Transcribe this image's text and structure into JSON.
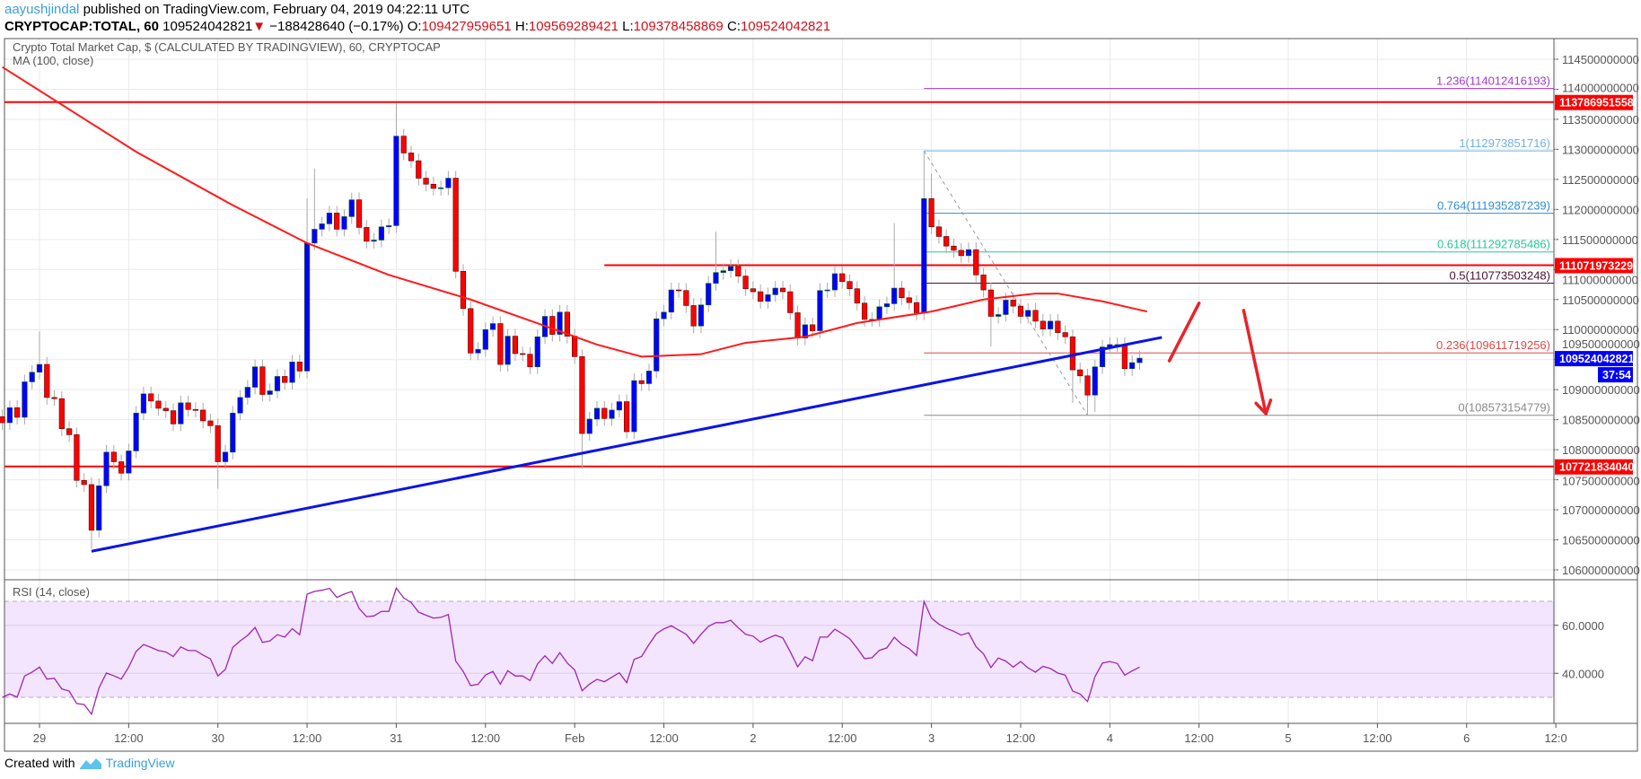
{
  "header": {
    "author": "aayushjindal",
    "published": "published on TradingView.com, February 04, 2019 04:22:11 UTC",
    "symbol": "CRYPTOCAP:TOTAL, 60",
    "last": "109524042821",
    "change": "−188428640 (−0.17%)",
    "direction": "down",
    "o_label": "O:",
    "o": "109427959651",
    "h_label": "H:",
    "h": "109569289421",
    "l_label": "L:",
    "l": "109378458869",
    "c_label": "C:",
    "c": "109524042821"
  },
  "chart": {
    "title": "Crypto Total Market Cap, $ (CALCULATED BY TRADINGVIEW), 60, CRYPTOCAP",
    "ma_label": "MA (100, close)",
    "rsi_label": "RSI (14, close)",
    "colors": {
      "up": "#0000ff",
      "down": "#ff0000",
      "ma": "#ff1a1a",
      "trend": "#0a14e6",
      "level": "#ff0000",
      "rsi": "#9c27b0",
      "rsi_band": "#f3e5fd"
    },
    "price_ticks": [
      "114500000000",
      "114000000000",
      "113500000000",
      "113000000000",
      "112500000000",
      "112000000000",
      "111500000000",
      "111000000000",
      "110500000000",
      "110000000000",
      "109500000000",
      "109000000000",
      "108500000000",
      "108000000000",
      "107500000000",
      "107000000000",
      "106500000000",
      "106000000000"
    ],
    "rsi_ticks": [
      "60.0000",
      "40.0000"
    ],
    "time_ticks": [
      {
        "label": "29",
        "t": "2019-01-29 00:00"
      },
      {
        "label": "12:00",
        "t": "2019-01-29 12:00"
      },
      {
        "label": "30",
        "t": "2019-01-30 00:00"
      },
      {
        "label": "12:00",
        "t": "2019-01-30 12:00"
      },
      {
        "label": "31",
        "t": "2019-01-31 00:00"
      },
      {
        "label": "12:00",
        "t": "2019-01-31 12:00"
      },
      {
        "label": "Feb",
        "t": "2019-02-01 00:00"
      },
      {
        "label": "12:00",
        "t": "2019-02-01 12:00"
      },
      {
        "label": "2",
        "t": "2019-02-02 00:00"
      },
      {
        "label": "12:00",
        "t": "2019-02-02 12:00"
      },
      {
        "label": "3",
        "t": "2019-02-03 00:00"
      },
      {
        "label": "12:00",
        "t": "2019-02-03 12:00"
      },
      {
        "label": "4",
        "t": "2019-02-04 00:00"
      },
      {
        "label": "12:00",
        "t": "2019-02-04 12:00"
      },
      {
        "label": "5",
        "t": "2019-02-05 00:00"
      },
      {
        "label": "12:00",
        "t": "2019-02-05 12:00"
      },
      {
        "label": "6",
        "t": "2019-02-06 00:00"
      },
      {
        "label": "12:0",
        "t": "2019-02-06 12:00"
      }
    ],
    "price_markers": [
      {
        "label": "113786951558",
        "value": 113.786951558,
        "color": "#ff0000"
      },
      {
        "label": "111071973229",
        "value": 111.071973229,
        "color": "#ff0000"
      },
      {
        "label": "109524042821",
        "value": 109.524042821,
        "color": "#0000ff"
      },
      {
        "label": "107721834040",
        "value": 107.72183405,
        "color": "#ff0000"
      }
    ],
    "countdown": "37:54"
  },
  "chart_data": {
    "type": "candlestick",
    "units": "billion USD",
    "interval_minutes": 60,
    "start": "2019-01-28 19:00",
    "first_open": 108.55,
    "close": [
      108.45,
      108.7,
      108.54,
      109.13,
      109.29,
      109.42,
      108.87,
      108.85,
      108.35,
      108.25,
      107.49,
      107.42,
      106.66,
      107.4,
      107.96,
      107.8,
      107.61,
      107.98,
      108.61,
      108.93,
      108.81,
      108.69,
      108.65,
      108.43,
      108.78,
      108.67,
      108.66,
      108.48,
      108.4,
      107.8,
      107.96,
      108.61,
      108.87,
      109.04,
      109.38,
      108.92,
      108.98,
      109.22,
      109.12,
      109.46,
      109.31,
      111.44,
      111.67,
      111.76,
      111.94,
      111.67,
      111.88,
      112.16,
      111.7,
      111.47,
      111.49,
      111.71,
      111.73,
      113.22,
      112.94,
      112.81,
      112.52,
      112.42,
      112.35,
      112.36,
      112.52,
      110.97,
      110.35,
      109.61,
      109.67,
      110.0,
      110.1,
      109.42,
      109.89,
      109.6,
      109.59,
      109.38,
      109.88,
      110.22,
      109.92,
      110.29,
      109.89,
      109.55,
      108.27,
      108.51,
      108.69,
      108.52,
      108.66,
      108.8,
      108.3,
      109.15,
      109.1,
      109.31,
      110.18,
      110.29,
      110.66,
      110.65,
      110.4,
      110.06,
      110.41,
      110.77,
      110.95,
      110.98,
      111.05,
      110.89,
      110.68,
      110.63,
      110.47,
      110.58,
      110.69,
      110.63,
      110.28,
      109.86,
      110.08,
      109.98,
      110.65,
      110.66,
      110.93,
      110.8,
      110.68,
      110.44,
      110.17,
      110.17,
      110.38,
      110.43,
      110.69,
      110.53,
      110.45,
      110.28,
      112.18,
      111.71,
      111.55,
      111.39,
      111.32,
      111.23,
      111.33,
      110.91,
      110.66,
      110.22,
      110.25,
      110.49,
      110.39,
      110.22,
      110.32,
      110.14,
      110.01,
      110.14,
      109.95,
      109.88,
      109.33,
      109.23,
      108.91,
      109.38,
      109.71,
      109.75,
      109.75,
      109.35,
      109.45,
      109.524
    ],
    "wick_extremes": [
      {
        "i": 5,
        "high": 109.97
      },
      {
        "i": 12,
        "low": 106.35
      },
      {
        "i": 29,
        "low": 107.35
      },
      {
        "i": 41,
        "high": 112.18
      },
      {
        "i": 42,
        "high": 112.68
      },
      {
        "i": 53,
        "high": 113.76
      },
      {
        "i": 78,
        "low": 107.68
      },
      {
        "i": 96,
        "high": 111.63
      },
      {
        "i": 120,
        "high": 111.77
      },
      {
        "i": 124,
        "high": 112.974
      },
      {
        "i": 125,
        "high": 112.6
      },
      {
        "i": 133,
        "low": 109.72
      },
      {
        "i": 144,
        "low": 108.78
      },
      {
        "i": 146,
        "low": 108.573
      },
      {
        "i": 147,
        "low": 108.63
      }
    ],
    "ma100": [
      [
        "2019-01-28 19:00",
        114.37
      ],
      [
        "2019-01-29 13:00",
        112.96
      ],
      [
        "2019-01-30 02:00",
        112.07
      ],
      [
        "2019-01-30 12:00",
        111.44
      ],
      [
        "2019-01-30 23:00",
        110.91
      ],
      [
        "2019-01-31 10:00",
        110.5
      ],
      [
        "2019-01-31 20:00",
        110.06
      ],
      [
        "2019-02-01 03:00",
        109.75
      ],
      [
        "2019-02-01 09:00",
        109.55
      ],
      [
        "2019-02-01 17:00",
        109.59
      ],
      [
        "2019-02-01 23:00",
        109.78
      ],
      [
        "2019-02-02 07:00",
        109.88
      ],
      [
        "2019-02-02 14:00",
        110.11
      ],
      [
        "2019-02-03 00:00",
        110.3
      ],
      [
        "2019-02-03 07:00",
        110.5
      ],
      [
        "2019-02-03 14:00",
        110.6
      ],
      [
        "2019-02-03 17:00",
        110.6
      ],
      [
        "2019-02-03 23:00",
        110.47
      ],
      [
        "2019-02-04 05:00",
        110.3
      ]
    ],
    "rsi": [
      30,
      31.4,
      30.1,
      38.9,
      40.5,
      42.6,
      37.6,
      37.9,
      33.5,
      32.6,
      27.4,
      27,
      23,
      33.9,
      40.1,
      39,
      37.6,
      42.6,
      49.1,
      52,
      50.8,
      49.5,
      48.9,
      47,
      51,
      49.5,
      49.5,
      47.6,
      46,
      38.9,
      41.6,
      50.8,
      53.5,
      55.8,
      59.1,
      52.9,
      53.5,
      56.1,
      55.1,
      58.6,
      56.1,
      73,
      74.1,
      74.6,
      75.4,
      71.6,
      73,
      74.1,
      67,
      63.6,
      63.9,
      65.8,
      65.8,
      75.5,
      71.4,
      69.5,
      65.5,
      64.2,
      63,
      63.3,
      64.5,
      45.1,
      40.8,
      34.9,
      35.4,
      39.3,
      40.8,
      35.5,
      41.1,
      38.9,
      38.9,
      37,
      43.9,
      47.3,
      44.1,
      48.6,
      44.3,
      41.4,
      32.75,
      35.5,
      37.5,
      36.5,
      38.4,
      40.25,
      36.1,
      45.8,
      47,
      52,
      56.5,
      58.5,
      59.8,
      58,
      56.25,
      52.5,
      56.25,
      59.6,
      61.1,
      61.1,
      62.1,
      59,
      56.25,
      55.5,
      53,
      54.6,
      55.9,
      54.75,
      49,
      42.75,
      46.9,
      45.25,
      55.1,
      55.1,
      58.4,
      56.5,
      54.4,
      50.5,
      46.1,
      46.5,
      49.6,
      50.6,
      55,
      52.1,
      50.25,
      47.4,
      70,
      63,
      60.5,
      58.75,
      57.5,
      55.9,
      56.9,
      51.1,
      48.1,
      42.4,
      46.4,
      45.1,
      42.6,
      44.9,
      42.25,
      40.5,
      42.9,
      42,
      40.1,
      39.25,
      32.6,
      31.4,
      28.25,
      38.6,
      44.25,
      44.9,
      44.1,
      39.25,
      41,
      42.6
    ],
    "rsi_bands": [
      30,
      70
    ],
    "horizontal_levels": [
      {
        "value": 113.786951558,
        "from": null
      },
      {
        "value": 111.071973229,
        "from": "2019-02-01 04:00"
      },
      {
        "value": 107.72183405,
        "from": null
      }
    ],
    "trendline": {
      "from": [
        "2019-01-29 07:00",
        106.31
      ],
      "to": [
        "2019-02-04 07:00",
        109.87
      ]
    },
    "fibonacci": {
      "from": [
        "2019-02-02 23:00",
        112.973851716
      ],
      "to": [
        "2019-02-03 21:00",
        108.573154779
      ],
      "levels": [
        {
          "label": "1.236(114012416193)",
          "value": 114.012416193,
          "color": "#a23cc8"
        },
        {
          "label": "1(112973851716)",
          "value": 112.973851716,
          "color": "#6fb1e0"
        },
        {
          "label": "0.764(111935287239)",
          "value": 111.935287239,
          "color": "#2f8fd0"
        },
        {
          "label": "0.618(111292785486)",
          "value": 111.292785486,
          "color": "#28c79a"
        },
        {
          "label": "0.5(110773503248)",
          "value": 110.773503248,
          "color": "#4a1030"
        },
        {
          "label": "0.236(109611719256)",
          "value": 109.611719256,
          "color": "#e04848"
        },
        {
          "label": "0(108573154779)",
          "value": 108.573154779,
          "color": "#8a8a8a"
        }
      ]
    },
    "arrows": [
      {
        "direction": "up",
        "from": [
          "2019-02-04 08:00",
          109.48
        ],
        "to": [
          "2019-02-04 12:00",
          110.44
        ]
      },
      {
        "direction": "down",
        "from": [
          "2019-02-04 18:00",
          110.32
        ],
        "to": [
          "2019-02-04 21:00",
          108.6
        ]
      }
    ]
  },
  "footer": {
    "created_with": "Created with",
    "brand": "TradingView"
  }
}
